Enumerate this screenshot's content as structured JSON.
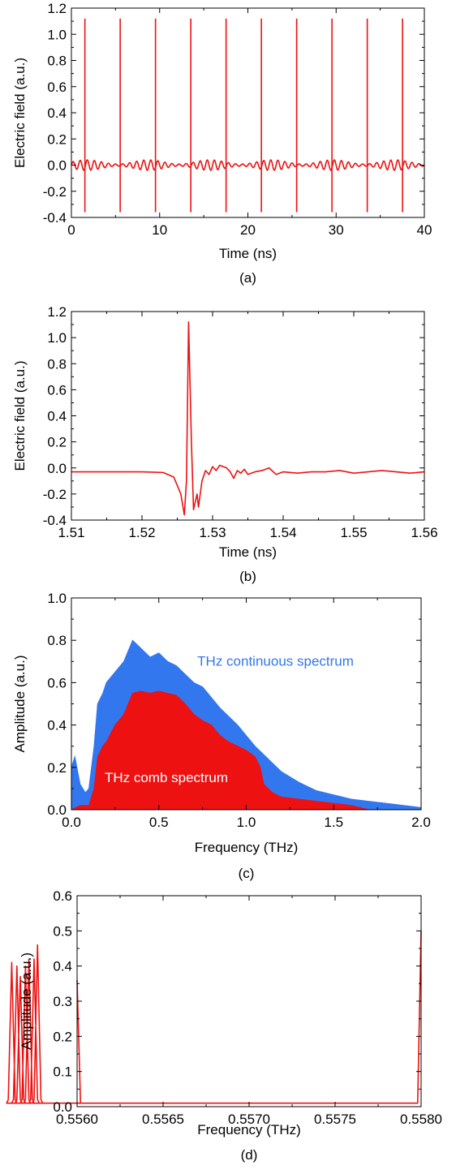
{
  "colors": {
    "red": "#ee1111",
    "blue": "#3377ee",
    "axis": "#000000"
  },
  "chart_data": [
    {
      "id": "a",
      "type": "line",
      "caption": "(a)",
      "xlabel": "Time (ns)",
      "ylabel": "Electric field (a.u.)",
      "xlim": [
        0,
        40
      ],
      "ylim": [
        -0.4,
        1.2
      ],
      "xticks": [
        0,
        10,
        20,
        30,
        40
      ],
      "xtick_labels": [
        "0",
        "10",
        "20",
        "30",
        "40"
      ],
      "yticks": [
        -0.4,
        -0.2,
        0.0,
        0.2,
        0.4,
        0.6,
        0.8,
        1.0,
        1.2
      ],
      "ytick_labels": [
        "-0.4",
        "-0.2",
        "0.0",
        "0.2",
        "0.4",
        "0.6",
        "0.8",
        "1.0",
        "1.2"
      ],
      "grid": false,
      "series": [
        {
          "color": "#ee1111",
          "pulse_times": [
            1.53,
            5.53,
            9.53,
            13.53,
            17.53,
            21.53,
            25.53,
            29.53,
            33.53,
            37.53
          ],
          "pulse_max": 1.12,
          "pulse_min": -0.36,
          "baseline": 0.0,
          "ripple_amplitude": 0.04
        }
      ]
    },
    {
      "id": "b",
      "type": "line",
      "caption": "(b)",
      "xlabel": "Time (ns)",
      "ylabel": "Electric field (a.u.)",
      "xlim": [
        1.51,
        1.56
      ],
      "ylim": [
        -0.4,
        1.2
      ],
      "xticks": [
        1.51,
        1.52,
        1.53,
        1.54,
        1.55,
        1.56
      ],
      "xtick_labels": [
        "1.51",
        "1.52",
        "1.53",
        "1.54",
        "1.55",
        "1.56"
      ],
      "yticks": [
        -0.4,
        -0.2,
        0.0,
        0.2,
        0.4,
        0.6,
        0.8,
        1.0,
        1.2
      ],
      "ytick_labels": [
        "-0.4",
        "-0.2",
        "0.0",
        "0.2",
        "0.4",
        "0.6",
        "0.8",
        "1.0",
        "1.2"
      ],
      "grid": false,
      "series": [
        {
          "color": "#ee1111",
          "x": [
            1.51,
            1.515,
            1.52,
            1.523,
            1.5245,
            1.5255,
            1.526,
            1.5263,
            1.5266,
            1.527,
            1.5273,
            1.5278,
            1.528,
            1.5285,
            1.529,
            1.5295,
            1.53,
            1.5305,
            1.531,
            1.5315,
            1.532,
            1.5325,
            1.533,
            1.5335,
            1.534,
            1.5345,
            1.535,
            1.536,
            1.537,
            1.538,
            1.539,
            1.54,
            1.542,
            1.544,
            1.546,
            1.548,
            1.55,
            1.552,
            1.554,
            1.556,
            1.558,
            1.56
          ],
          "y": [
            -0.03,
            -0.03,
            -0.03,
            -0.035,
            -0.07,
            -0.2,
            -0.36,
            -0.1,
            1.12,
            0.2,
            -0.32,
            -0.2,
            -0.3,
            -0.1,
            -0.02,
            -0.05,
            0.01,
            -0.02,
            0.02,
            0.01,
            0.0,
            -0.03,
            -0.08,
            -0.02,
            -0.04,
            -0.01,
            -0.05,
            -0.03,
            -0.02,
            0.0,
            -0.05,
            -0.03,
            -0.04,
            -0.03,
            -0.03,
            -0.02,
            -0.04,
            -0.03,
            -0.02,
            -0.03,
            -0.04,
            -0.03
          ]
        }
      ]
    },
    {
      "id": "c",
      "type": "area",
      "caption": "(c)",
      "xlabel": "Frequency (THz)",
      "ylabel": "Amplitude (a.u.)",
      "xlim": [
        0.0,
        2.0
      ],
      "ylim": [
        0.0,
        1.0
      ],
      "xticks": [
        0.0,
        0.5,
        1.0,
        1.5,
        2.0
      ],
      "xtick_labels": [
        "0.0",
        "0.5",
        "1.0",
        "1.5",
        "2.0"
      ],
      "yticks": [
        0.0,
        0.2,
        0.4,
        0.6,
        0.8,
        1.0
      ],
      "ytick_labels": [
        "0.0",
        "0.2",
        "0.4",
        "0.6",
        "0.8",
        "1.0"
      ],
      "grid": false,
      "series": [
        {
          "color": "#3377ee",
          "x": [
            0.0,
            0.02,
            0.05,
            0.08,
            0.1,
            0.13,
            0.15,
            0.18,
            0.2,
            0.25,
            0.3,
            0.35,
            0.4,
            0.45,
            0.5,
            0.55,
            0.6,
            0.65,
            0.7,
            0.75,
            0.8,
            0.85,
            0.9,
            0.95,
            1.0,
            1.05,
            1.1,
            1.15,
            1.2,
            1.3,
            1.4,
            1.5,
            1.6,
            1.7,
            1.8,
            1.9,
            2.0
          ],
          "y": [
            0.2,
            0.25,
            0.12,
            0.08,
            0.1,
            0.3,
            0.5,
            0.55,
            0.6,
            0.65,
            0.7,
            0.8,
            0.76,
            0.72,
            0.74,
            0.7,
            0.68,
            0.64,
            0.6,
            0.58,
            0.53,
            0.48,
            0.44,
            0.4,
            0.35,
            0.3,
            0.26,
            0.22,
            0.18,
            0.13,
            0.09,
            0.07,
            0.05,
            0.04,
            0.03,
            0.02,
            0.01
          ]
        },
        {
          "color": "#ee1111",
          "x": [
            0.0,
            0.05,
            0.1,
            0.13,
            0.15,
            0.18,
            0.2,
            0.25,
            0.3,
            0.35,
            0.4,
            0.45,
            0.5,
            0.55,
            0.6,
            0.65,
            0.7,
            0.75,
            0.8,
            0.85,
            0.9,
            0.95,
            1.0,
            1.05,
            1.08,
            1.1,
            1.15,
            1.2,
            1.3,
            1.4,
            1.5,
            1.6,
            1.65,
            1.7,
            1.8,
            2.0
          ],
          "y": [
            0.0,
            0.02,
            0.02,
            0.1,
            0.25,
            0.3,
            0.32,
            0.4,
            0.45,
            0.55,
            0.56,
            0.55,
            0.56,
            0.55,
            0.54,
            0.5,
            0.45,
            0.42,
            0.4,
            0.35,
            0.32,
            0.3,
            0.28,
            0.25,
            0.2,
            0.12,
            0.08,
            0.06,
            0.05,
            0.04,
            0.03,
            0.02,
            0.01,
            0.0,
            0.0,
            0.0
          ]
        }
      ],
      "annotations": [
        {
          "text": "THz continuous spectrum",
          "color": "#3377ee",
          "x": 0.72,
          "y": 0.68
        },
        {
          "text": "THz comb spectrum",
          "color": "#ffffff",
          "x": 0.19,
          "y": 0.13
        }
      ]
    },
    {
      "id": "d",
      "type": "line",
      "caption": "(d)",
      "xlabel": "Frequency (THz)",
      "ylabel": "Amplitude (a.u.)",
      "xlim": [
        0.556,
        0.558
      ],
      "ylim": [
        0.0,
        0.6
      ],
      "xticks": [
        0.556,
        0.5565,
        0.557,
        0.5575,
        0.558
      ],
      "xtick_labels": [
        "0.5560",
        "0.5565",
        "0.5570",
        "0.5575",
        "0.5580"
      ],
      "yticks": [
        0.0,
        0.1,
        0.2,
        0.3,
        0.4,
        0.5,
        0.6
      ],
      "ytick_labels": [
        "0.0",
        "0.1",
        "0.2",
        "0.3",
        "0.4",
        "0.5",
        "0.6"
      ],
      "grid": false,
      "series": [
        {
          "color": "#ee1111",
          "peaks_x": [
            0.55562,
            0.55565,
            0.55567,
            0.5557,
            0.55572,
            0.55575,
            0.55577
          ],
          "peaks_y": [
            0.41,
            0.4,
            0.37,
            0.4,
            0.42,
            0.42,
            0.46
          ],
          "edge_left_y": 0.36,
          "edge_right_y": 0.5,
          "peak_halfwidth": 2e-05,
          "floor": 0.01
        }
      ]
    }
  ]
}
